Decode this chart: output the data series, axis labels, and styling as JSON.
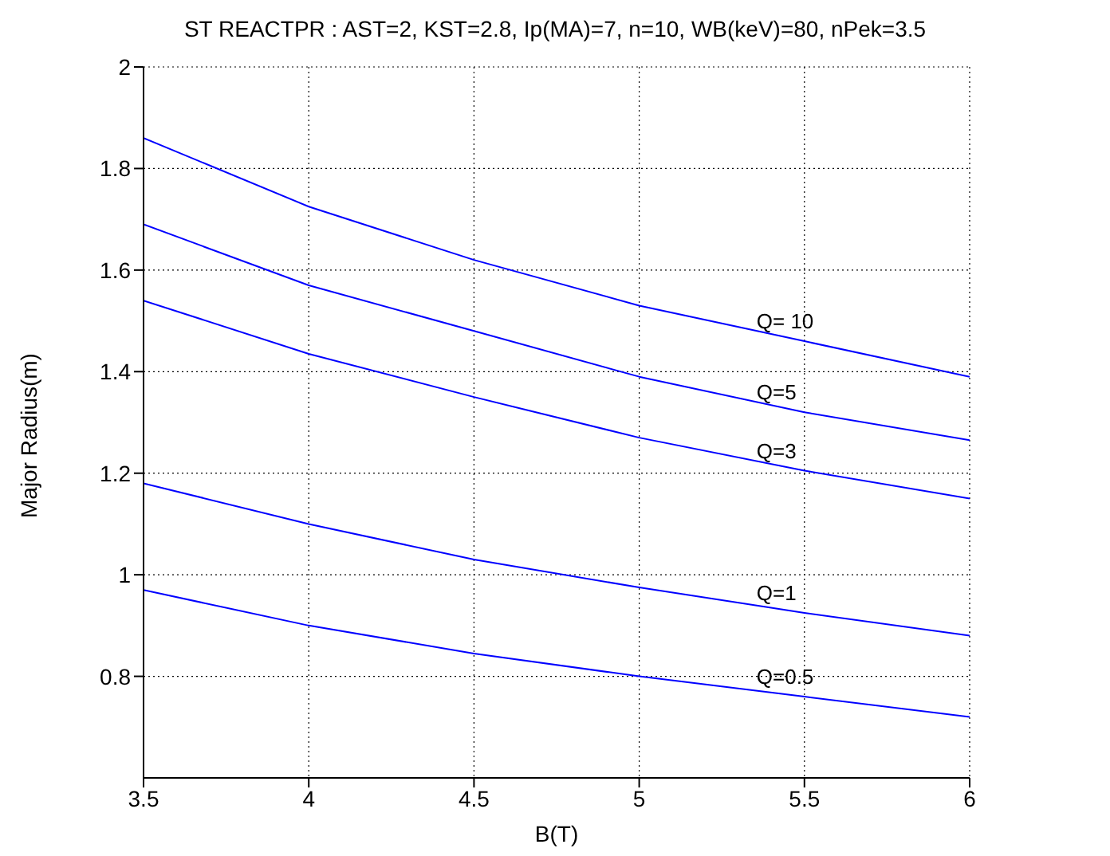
{
  "chart_data": {
    "type": "line",
    "title": "ST REACTPR : AST=2, KST=2.8, Ip(MA)=7, n=10, WB(keV)=80, nPek=3.5",
    "xlabel": "B(T)",
    "ylabel": "Major Radius(m)",
    "x": [
      3.5,
      4,
      4.5,
      5,
      5.5,
      6
    ],
    "series": [
      {
        "name": "Q= 10",
        "color": "#0000ff",
        "values": [
          1.86,
          1.725,
          1.62,
          1.53,
          1.46,
          1.39
        ]
      },
      {
        "name": "Q=5",
        "color": "#0000ff",
        "values": [
          1.69,
          1.57,
          1.48,
          1.39,
          1.32,
          1.265
        ]
      },
      {
        "name": "Q=3",
        "color": "#0000ff",
        "values": [
          1.54,
          1.435,
          1.35,
          1.27,
          1.205,
          1.15
        ]
      },
      {
        "name": "Q=1",
        "color": "#0000ff",
        "values": [
          1.18,
          1.1,
          1.03,
          0.975,
          0.925,
          0.88
        ]
      },
      {
        "name": "Q=0.5",
        "color": "#0000ff",
        "values": [
          0.97,
          0.9,
          0.845,
          0.8,
          0.76,
          0.72
        ]
      }
    ],
    "xlim": [
      3.5,
      6
    ],
    "xticks": [
      3.5,
      4,
      4.5,
      5,
      5.5,
      6
    ],
    "ylim": [
      0.6,
      2
    ],
    "yticks": [
      0.8,
      1,
      1.2,
      1.4,
      1.6,
      1.8,
      2
    ],
    "grid": true,
    "marker": "none",
    "line_style": "solid"
  }
}
